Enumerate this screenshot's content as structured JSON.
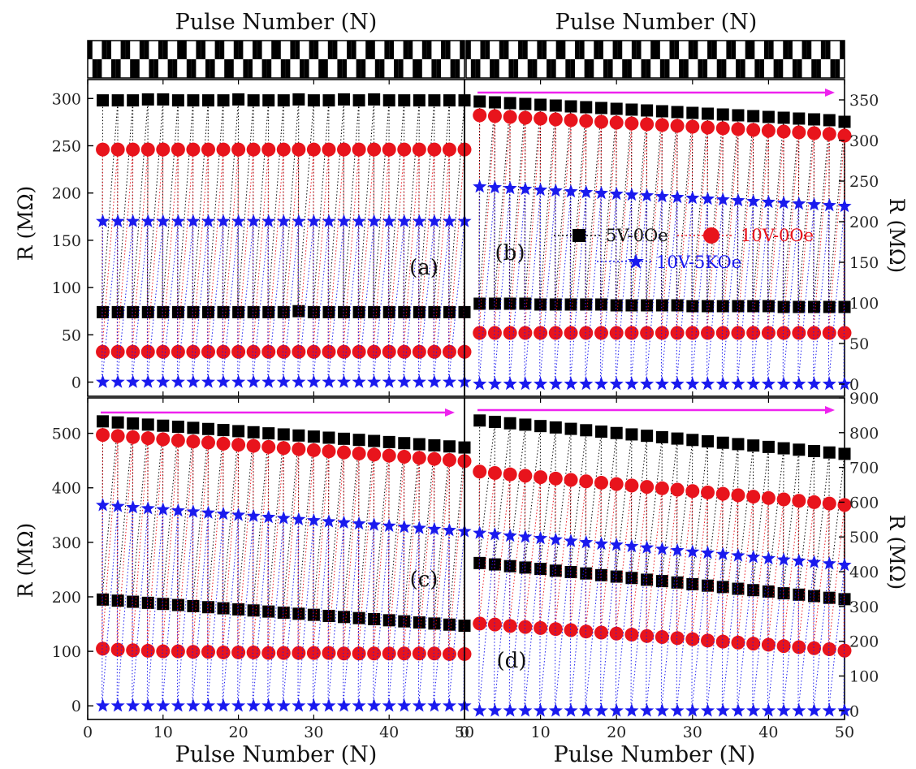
{
  "chart_data": [
    {
      "panel": "a",
      "type": "scatter",
      "label": "(a)",
      "top_xlabel": "Pulse Number (N)",
      "ylabel": "R (MΩ)",
      "xlim": [
        0,
        50
      ],
      "ylim": [
        -15,
        320
      ],
      "yticks": [
        0,
        50,
        100,
        150,
        200,
        250,
        300
      ],
      "y_side": "left",
      "xticks": [],
      "pulse_x": [
        2,
        4,
        6,
        8,
        10,
        12,
        14,
        16,
        18,
        20,
        22,
        24,
        26,
        28,
        30,
        32,
        34,
        36,
        38,
        40,
        42,
        44,
        46,
        48,
        50
      ],
      "series": [
        {
          "name": "5V-0Oe",
          "high": [
            298,
            298,
            298,
            299,
            299,
            298,
            298,
            298,
            298,
            299,
            298,
            298,
            298,
            299,
            298,
            298,
            299,
            298,
            299,
            298,
            298,
            298,
            298,
            298,
            298
          ],
          "low": [
            74,
            74,
            74,
            74,
            74,
            74,
            74,
            74,
            74,
            74,
            74,
            74,
            74,
            75,
            74,
            74,
            74,
            74,
            74,
            74,
            74,
            74,
            74,
            74,
            74
          ]
        },
        {
          "name": "10V-0Oe",
          "high": [
            246,
            246,
            246,
            246,
            246,
            246,
            246,
            246,
            246,
            246,
            246,
            246,
            246,
            246,
            246,
            246,
            246,
            246,
            246,
            246,
            246,
            246,
            246,
            246,
            246
          ],
          "low": [
            32,
            32,
            32,
            32,
            32,
            32,
            32,
            32,
            32,
            32,
            32,
            32,
            32,
            32,
            32,
            32,
            32,
            32,
            32,
            32,
            32,
            32,
            32,
            32,
            32
          ]
        },
        {
          "name": "10V-5KOe",
          "high": [
            170,
            170,
            170,
            170,
            170,
            170,
            170,
            170,
            170,
            170,
            170,
            170,
            170,
            170,
            170,
            170,
            170,
            170,
            170,
            170,
            170,
            170,
            170,
            170,
            170
          ],
          "low": [
            0,
            0,
            0,
            0,
            0,
            0,
            0,
            0,
            0,
            0,
            0,
            0,
            0,
            0,
            0,
            0,
            0,
            0,
            0,
            0,
            0,
            0,
            0,
            0,
            0
          ]
        }
      ]
    },
    {
      "panel": "b",
      "type": "scatter",
      "label": "(b)",
      "top_xlabel": "Pulse Number (N)",
      "ylabel": "R (MΩ)",
      "xlim": [
        0,
        50
      ],
      "ylim": [
        -15,
        375
      ],
      "yticks": [
        0,
        50,
        100,
        150,
        200,
        250,
        300,
        350
      ],
      "y_side": "right",
      "xticks": [],
      "pulse_x": [
        2,
        4,
        6,
        8,
        10,
        12,
        14,
        16,
        18,
        20,
        22,
        24,
        26,
        28,
        30,
        32,
        34,
        36,
        38,
        40,
        42,
        44,
        46,
        48,
        50
      ],
      "series": [
        {
          "name": "5V-0Oe",
          "high": [
            348,
            347,
            346,
            345,
            344,
            343,
            342,
            341,
            340,
            339,
            338,
            337,
            336,
            335,
            334,
            333,
            332,
            331,
            330,
            329,
            328,
            327,
            326,
            325,
            323
          ],
          "low": [
            99,
            99,
            99,
            99,
            98,
            98,
            98,
            98,
            98,
            97,
            97,
            97,
            97,
            97,
            96,
            96,
            96,
            96,
            96,
            96,
            95,
            95,
            95,
            95,
            95
          ]
        },
        {
          "name": "10V-0Oe",
          "high": [
            331,
            330,
            329,
            328,
            327,
            326,
            325,
            324,
            323,
            322,
            321,
            320,
            319,
            318,
            317,
            316,
            315,
            314,
            313,
            312,
            311,
            310,
            309,
            308,
            306
          ],
          "low": [
            63,
            63,
            63,
            63,
            63,
            63,
            63,
            63,
            63,
            63,
            63,
            63,
            63,
            63,
            63,
            63,
            63,
            63,
            63,
            63,
            63,
            63,
            63,
            63,
            63
          ]
        },
        {
          "name": "10V-5KOe",
          "high": [
            243,
            242,
            241,
            240,
            239,
            238,
            237,
            236,
            235,
            234,
            233,
            232,
            231,
            230,
            229,
            228,
            227,
            226,
            225,
            224,
            223,
            222,
            221,
            220,
            219
          ],
          "low": [
            0,
            0,
            0,
            0,
            0,
            0,
            0,
            0,
            0,
            0,
            0,
            0,
            0,
            0,
            0,
            0,
            0,
            0,
            0,
            0,
            0,
            0,
            0,
            0,
            0
          ]
        }
      ],
      "legend": {
        "placement": "center-right",
        "entries": [
          "5V-0Oe",
          "10V-0Oe",
          "10V-5KOe"
        ]
      },
      "arrow": true
    },
    {
      "panel": "c",
      "type": "scatter",
      "label": "(c)",
      "xlabel": "Pulse Number (N)",
      "ylabel": "R (MΩ)",
      "xlim": [
        0,
        50
      ],
      "ylim": [
        -25,
        565
      ],
      "yticks": [
        0,
        100,
        200,
        300,
        400,
        500
      ],
      "y_side": "left",
      "xticks": [
        "0",
        "10",
        "20",
        "30",
        "40",
        "50"
      ],
      "pulse_x": [
        2,
        4,
        6,
        8,
        10,
        12,
        14,
        16,
        18,
        20,
        22,
        24,
        26,
        28,
        30,
        32,
        34,
        36,
        38,
        40,
        42,
        44,
        46,
        48,
        50
      ],
      "series": [
        {
          "name": "5V-0Oe",
          "high": [
            522,
            520,
            518,
            516,
            514,
            512,
            510,
            508,
            506,
            504,
            502,
            500,
            498,
            496,
            494,
            492,
            490,
            488,
            486,
            484,
            482,
            480,
            478,
            476,
            474
          ],
          "low": [
            195,
            193,
            191,
            189,
            187,
            185,
            183,
            181,
            179,
            177,
            175,
            173,
            171,
            169,
            167,
            165,
            163,
            161,
            159,
            157,
            155,
            153,
            151,
            149,
            147
          ]
        },
        {
          "name": "10V-0Oe",
          "high": [
            497,
            495,
            493,
            491,
            489,
            487,
            485,
            483,
            481,
            479,
            477,
            475,
            473,
            471,
            469,
            467,
            465,
            463,
            461,
            459,
            457,
            455,
            453,
            451,
            449
          ],
          "low": [
            105,
            103,
            102,
            101,
            100,
            100,
            99,
            99,
            98,
            98,
            98,
            97,
            97,
            97,
            97,
            97,
            96,
            96,
            96,
            96,
            96,
            96,
            96,
            95,
            95
          ]
        },
        {
          "name": "10V-5KOe",
          "high": [
            368,
            366,
            364,
            362,
            360,
            358,
            356,
            354,
            352,
            350,
            348,
            346,
            344,
            342,
            340,
            338,
            336,
            334,
            332,
            330,
            328,
            326,
            324,
            322,
            320
          ],
          "low": [
            0,
            0,
            0,
            0,
            0,
            0,
            0,
            0,
            0,
            0,
            0,
            0,
            0,
            0,
            0,
            0,
            0,
            0,
            0,
            0,
            0,
            0,
            0,
            0,
            0
          ]
        }
      ],
      "arrow": true
    },
    {
      "panel": "d",
      "type": "scatter",
      "label": "(d)",
      "xlabel": "Pulse Number (N)",
      "ylabel": "R (MΩ)",
      "xlim": [
        0,
        50
      ],
      "ylim": [
        -25,
        900
      ],
      "yticks": [
        0,
        100,
        200,
        300,
        400,
        500,
        600,
        700,
        800,
        900
      ],
      "y_side": "right",
      "xticks": [
        "0",
        "10",
        "20",
        "30",
        "40",
        "50"
      ],
      "pulse_x": [
        2,
        4,
        6,
        8,
        10,
        12,
        14,
        16,
        18,
        20,
        22,
        24,
        26,
        28,
        30,
        32,
        34,
        36,
        38,
        40,
        42,
        44,
        46,
        48,
        50
      ],
      "series": [
        {
          "name": "5V-0Oe",
          "high": [
            835,
            831,
            827,
            823,
            819,
            815,
            811,
            807,
            803,
            799,
            795,
            791,
            787,
            783,
            779,
            775,
            771,
            767,
            763,
            759,
            755,
            751,
            747,
            743,
            739
          ],
          "low": [
            425,
            421,
            416,
            412,
            408,
            403,
            399,
            395,
            390,
            386,
            382,
            377,
            373,
            369,
            364,
            360,
            356,
            351,
            347,
            343,
            338,
            334,
            330,
            325,
            321
          ]
        },
        {
          "name": "10V-0Oe",
          "high": [
            688,
            684,
            680,
            676,
            672,
            668,
            664,
            660,
            656,
            652,
            648,
            644,
            640,
            636,
            632,
            628,
            624,
            620,
            616,
            612,
            608,
            604,
            600,
            596,
            592
          ],
          "low": [
            251,
            248,
            244,
            241,
            238,
            235,
            232,
            228,
            225,
            222,
            219,
            215,
            212,
            209,
            206,
            202,
            199,
            196,
            193,
            190,
            186,
            183,
            180,
            177,
            173
          ]
        },
        {
          "name": "10V-5KOe",
          "high": [
            511,
            507,
            503,
            500,
            496,
            492,
            488,
            484,
            480,
            477,
            473,
            469,
            465,
            461,
            457,
            454,
            450,
            446,
            442,
            438,
            434,
            431,
            427,
            423,
            419
          ],
          "low": [
            0,
            0,
            0,
            0,
            0,
            0,
            0,
            0,
            0,
            0,
            0,
            0,
            0,
            0,
            0,
            0,
            0,
            0,
            0,
            0,
            0,
            0,
            0,
            0,
            0
          ]
        }
      ],
      "arrow": true
    }
  ],
  "colors": {
    "5V-0Oe": "#000000",
    "10V-0Oe": "#e8141c",
    "10V-5KOe": "#1a1aee",
    "arrow": "#ee22ee"
  },
  "legend_colors": {
    "5V-0Oe": "#000000",
    "10V-0Oe": "#e8141c",
    "10V-5KOe": "#1a1aee"
  },
  "pulse_strip": {
    "description": "alternating black/white pulse train",
    "pattern": "square-wave"
  }
}
